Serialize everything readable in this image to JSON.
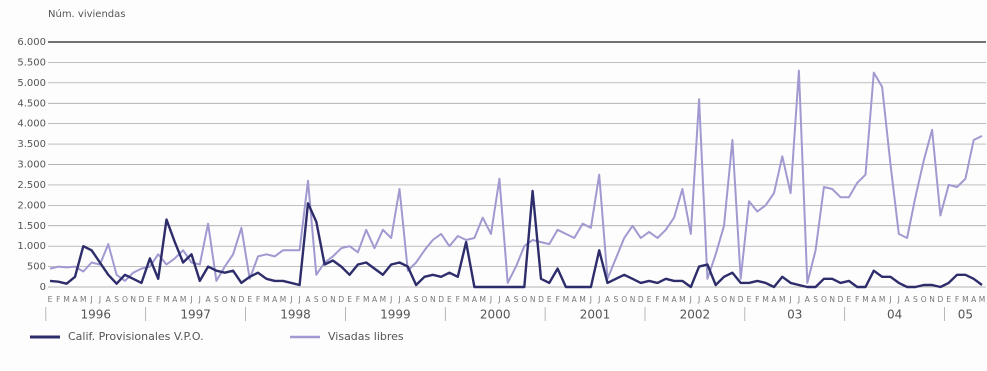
{
  "chart_data": {
    "type": "line",
    "y_axis_label": "Núm. viviendas",
    "categories": [
      "E",
      "F",
      "M",
      "A",
      "M",
      "J",
      "J",
      "A",
      "S",
      "O",
      "N",
      "D",
      "E",
      "F",
      "M",
      "A",
      "M",
      "J",
      "J",
      "A",
      "S",
      "O",
      "N",
      "D",
      "E",
      "F",
      "M",
      "A",
      "M",
      "J",
      "J",
      "A",
      "S",
      "O",
      "N",
      "D",
      "E",
      "F",
      "M",
      "A",
      "M",
      "J",
      "J",
      "A",
      "S",
      "O",
      "N",
      "D",
      "E",
      "F",
      "M",
      "A",
      "M",
      "J",
      "J",
      "A",
      "S",
      "O",
      "N",
      "D",
      "E",
      "F",
      "M",
      "A",
      "M",
      "J",
      "J",
      "A",
      "S",
      "O",
      "N",
      "D",
      "E",
      "F",
      "M",
      "A",
      "M",
      "J",
      "J",
      "A",
      "S",
      "O",
      "N",
      "D",
      "E",
      "F",
      "M",
      "A",
      "M",
      "J",
      "J",
      "A",
      "S",
      "O",
      "N",
      "D",
      "E",
      "F",
      "M",
      "A",
      "M",
      "J",
      "J",
      "A",
      "S",
      "O",
      "N",
      "D",
      "E",
      "F",
      "M",
      "A",
      "M"
    ],
    "year_labels": [
      "1996",
      "1997",
      "1998",
      "1999",
      "2000",
      "2001",
      "2002",
      "03",
      "04",
      "05"
    ],
    "series": [
      {
        "name": "Calif. Provisionales V.P.O.",
        "color": "#2e2d6b",
        "values": [
          150,
          130,
          80,
          250,
          1000,
          900,
          600,
          300,
          80,
          300,
          200,
          100,
          700,
          200,
          1650,
          1100,
          600,
          800,
          150,
          500,
          400,
          350,
          400,
          100,
          250,
          350,
          200,
          150,
          150,
          100,
          50,
          2050,
          1600,
          550,
          650,
          500,
          300,
          550,
          600,
          450,
          300,
          550,
          600,
          500,
          50,
          250,
          300,
          250,
          350,
          250,
          1100,
          0,
          0,
          0,
          0,
          0,
          0,
          0,
          2350,
          200,
          100,
          450,
          0,
          0,
          0,
          0,
          900,
          100,
          200,
          300,
          200,
          100,
          150,
          100,
          200,
          150,
          150,
          0,
          500,
          550,
          50,
          250,
          350,
          100,
          100,
          150,
          100,
          0,
          250,
          100,
          50,
          0,
          0,
          200,
          200,
          100,
          150,
          0,
          0,
          400,
          250,
          250,
          100,
          0,
          0,
          50,
          50,
          0,
          100,
          300,
          300,
          200,
          50
        ]
      },
      {
        "name": "Visadas libres",
        "color": "#a09ad0",
        "values": [
          450,
          500,
          480,
          500,
          380,
          600,
          550,
          1050,
          300,
          150,
          350,
          450,
          500,
          800,
          550,
          700,
          900,
          600,
          550,
          1550,
          150,
          500,
          800,
          1450,
          200,
          750,
          800,
          750,
          900,
          900,
          900,
          2600,
          300,
          600,
          750,
          950,
          1000,
          850,
          1400,
          950,
          1400,
          1200,
          2400,
          400,
          600,
          900,
          1150,
          1300,
          1000,
          1250,
          1150,
          1200,
          1700,
          1300,
          2650,
          100,
          500,
          1000,
          1150,
          1100,
          1050,
          1400,
          1300,
          1200,
          1550,
          1450,
          2750,
          200,
          700,
          1200,
          1500,
          1200,
          1350,
          1200,
          1400,
          1700,
          2400,
          1300,
          4600,
          200,
          800,
          1500,
          3600,
          200,
          2100,
          1850,
          2000,
          2300,
          3200,
          2300,
          5300,
          100,
          900,
          2450,
          2400,
          2200,
          2200,
          2550,
          2750,
          5250,
          4900,
          3000,
          1300,
          1200,
          2200,
          3100,
          3850,
          1750,
          2500,
          2450,
          2650,
          3600,
          3700
        ]
      }
    ],
    "ylim": [
      0,
      6000
    ],
    "yticks": [
      0,
      500,
      {
        "value": 1000,
        "label": "1.000"
      },
      {
        "value": 1500,
        "label": "1.500"
      },
      {
        "value": 2000,
        "label": "2.000"
      },
      {
        "value": 2500,
        "label": "2.500"
      },
      {
        "value": 3000,
        "label": "3.000"
      },
      {
        "value": 3500,
        "label": "3.500"
      },
      {
        "value": 4000,
        "label": "4.000"
      },
      {
        "value": 4500,
        "label": "4.500"
      },
      {
        "value": 5000,
        "label": "5.000"
      },
      {
        "value": 5500,
        "label": "5.500"
      },
      {
        "value": 6000,
        "label": "6.000"
      }
    ],
    "grid": true
  }
}
